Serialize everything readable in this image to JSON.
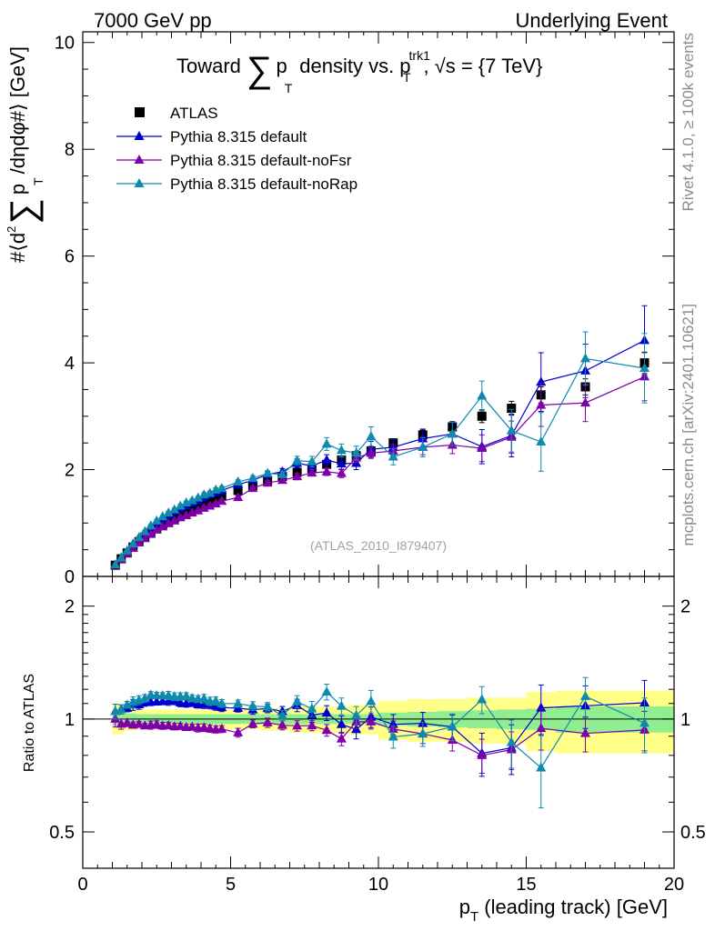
{
  "header": {
    "left": "7000 GeV pp",
    "right": "Underlying Event"
  },
  "side": {
    "rivet": "Rivet 4.1.0, ≥ 100k events",
    "mcplots": "mcplots.cern.ch [arXiv:2401.10621]"
  },
  "watermark": "(ATLAS_2010_I879407)",
  "colors": {
    "data": "#000000",
    "default": "#0000cc",
    "noFsr": "#7f00a8",
    "noRap": "#0f8aad",
    "band_stat": "#90ee90",
    "band_syst": "#ffff88"
  },
  "chart_data": {
    "type": "scatter",
    "title": {
      "prefix": "Toward",
      "sum": "∑",
      "pt": "p",
      "pt_sub": "T",
      "middle": "density vs. p",
      "trk_sup": "trk1",
      "trk_sub": "T",
      "suffix": ", √s = {7 TeV}"
    },
    "ylabel": {
      "prefix": "#⟨d",
      "sup": "2",
      "sum": "∑",
      "p": "p",
      "sub": "T",
      "suffix": "/dηdφ#⟩ [GeV]"
    },
    "xlabel": {
      "p": "p",
      "sub": "T",
      "suffix": " (leading track) [GeV]"
    },
    "ratio_ylabel": "Ratio to ATLAS",
    "xlim": [
      0,
      20
    ],
    "ylim": [
      0,
      10.2
    ],
    "ratio_ylim": [
      0.4,
      2.4
    ],
    "x_ticks": [
      "0",
      "5",
      "10",
      "15",
      "20"
    ],
    "y_ticks": [
      "0",
      "2",
      "4",
      "6",
      "8",
      "10"
    ],
    "ratio_ticks": [
      "0.5",
      "1",
      "2"
    ],
    "legend": {
      "position": "top-left",
      "entries": [
        "ATLAS",
        "Pythia 8.315 default",
        "Pythia 8.315 default-noFsr",
        "Pythia 8.315 default-noRap"
      ]
    },
    "x": [
      1.1,
      1.3,
      1.5,
      1.7,
      1.9,
      2.1,
      2.3,
      2.5,
      2.7,
      2.9,
      3.1,
      3.3,
      3.5,
      3.7,
      3.9,
      4.1,
      4.3,
      4.5,
      4.7,
      5.25,
      5.75,
      6.25,
      6.75,
      7.25,
      7.75,
      8.25,
      8.75,
      9.25,
      9.75,
      10.5,
      11.5,
      12.5,
      13.5,
      14.5,
      15.5,
      17.0,
      19.0
    ],
    "series": [
      {
        "name": "ATLAS",
        "values": [
          0.21,
          0.33,
          0.44,
          0.55,
          0.65,
          0.74,
          0.82,
          0.9,
          0.97,
          1.03,
          1.09,
          1.15,
          1.2,
          1.25,
          1.3,
          1.35,
          1.4,
          1.45,
          1.5,
          1.61,
          1.7,
          1.79,
          1.87,
          1.95,
          2.02,
          2.1,
          2.18,
          2.26,
          2.35,
          2.5,
          2.65,
          2.8,
          3.0,
          3.15,
          3.4,
          3.55,
          4.0
        ],
        "errors": [
          0.01,
          0.01,
          0.01,
          0.01,
          0.01,
          0.01,
          0.01,
          0.01,
          0.01,
          0.01,
          0.02,
          0.02,
          0.02,
          0.02,
          0.02,
          0.02,
          0.02,
          0.02,
          0.02,
          0.03,
          0.03,
          0.04,
          0.04,
          0.04,
          0.05,
          0.05,
          0.06,
          0.06,
          0.07,
          0.08,
          0.09,
          0.1,
          0.12,
          0.13,
          0.15,
          0.15,
          0.2
        ]
      },
      {
        "name": "Pythia 8.315 default",
        "values": [
          0.22,
          0.35,
          0.47,
          0.6,
          0.71,
          0.82,
          0.91,
          1.0,
          1.08,
          1.15,
          1.22,
          1.27,
          1.32,
          1.38,
          1.42,
          1.48,
          1.53,
          1.57,
          1.61,
          1.72,
          1.8,
          1.91,
          1.96,
          2.12,
          2.07,
          2.18,
          2.11,
          2.12,
          2.38,
          2.42,
          2.58,
          2.67,
          2.43,
          2.64,
          3.64,
          3.85,
          4.42
        ],
        "errors": [
          0.01,
          0.01,
          0.01,
          0.02,
          0.02,
          0.02,
          0.02,
          0.02,
          0.02,
          0.03,
          0.03,
          0.03,
          0.03,
          0.03,
          0.03,
          0.04,
          0.04,
          0.04,
          0.04,
          0.04,
          0.05,
          0.05,
          0.06,
          0.08,
          0.09,
          0.1,
          0.11,
          0.12,
          0.15,
          0.15,
          0.18,
          0.2,
          0.32,
          0.4,
          0.55,
          0.5,
          0.65
        ]
      },
      {
        "name": "Pythia 8.315 default-noFsr",
        "values": [
          0.21,
          0.32,
          0.43,
          0.53,
          0.63,
          0.71,
          0.79,
          0.87,
          0.93,
          0.99,
          1.04,
          1.1,
          1.14,
          1.19,
          1.23,
          1.28,
          1.32,
          1.36,
          1.41,
          1.48,
          1.65,
          1.75,
          1.8,
          1.87,
          1.94,
          1.96,
          1.93,
          2.22,
          2.31,
          2.35,
          2.42,
          2.46,
          2.4,
          2.61,
          3.21,
          3.25,
          3.74
        ],
        "errors": [
          0.01,
          0.01,
          0.01,
          0.01,
          0.01,
          0.01,
          0.02,
          0.02,
          0.02,
          0.02,
          0.02,
          0.02,
          0.02,
          0.02,
          0.03,
          0.03,
          0.03,
          0.03,
          0.03,
          0.04,
          0.04,
          0.05,
          0.05,
          0.06,
          0.06,
          0.07,
          0.08,
          0.09,
          0.1,
          0.12,
          0.14,
          0.16,
          0.25,
          0.3,
          0.4,
          0.35,
          0.45
        ]
      },
      {
        "name": "Pythia 8.315 default-noRap",
        "values": [
          0.22,
          0.35,
          0.48,
          0.61,
          0.73,
          0.84,
          0.95,
          1.04,
          1.12,
          1.19,
          1.25,
          1.32,
          1.38,
          1.42,
          1.47,
          1.53,
          1.56,
          1.62,
          1.65,
          1.77,
          1.84,
          1.93,
          1.91,
          2.17,
          2.15,
          2.48,
          2.36,
          2.31,
          2.62,
          2.24,
          2.42,
          2.67,
          3.38,
          2.73,
          2.52,
          4.08,
          3.9
        ],
        "errors": [
          0.01,
          0.01,
          0.01,
          0.02,
          0.02,
          0.02,
          0.02,
          0.02,
          0.02,
          0.03,
          0.03,
          0.03,
          0.03,
          0.03,
          0.03,
          0.04,
          0.04,
          0.04,
          0.04,
          0.04,
          0.05,
          0.05,
          0.06,
          0.08,
          0.1,
          0.12,
          0.12,
          0.13,
          0.18,
          0.15,
          0.18,
          0.22,
          0.28,
          0.4,
          0.55,
          0.5,
          0.65
        ]
      }
    ],
    "ratio_bands": {
      "edges": [
        1,
        1.4,
        1.8,
        2.2,
        2.6,
        3.0,
        3.4,
        3.8,
        4.2,
        4.6,
        5.0,
        5.5,
        6.0,
        6.5,
        7.0,
        7.5,
        8.0,
        8.5,
        9.0,
        9.5,
        10.0,
        11.0,
        12.0,
        13.0,
        14.0,
        15.0,
        16.0,
        18.0,
        20.0
      ],
      "stat": [
        0.04,
        0.035,
        0.03,
        0.03,
        0.03,
        0.03,
        0.03,
        0.03,
        0.03,
        0.03,
        0.03,
        0.03,
        0.03,
        0.03,
        0.03,
        0.03,
        0.03,
        0.03,
        0.03,
        0.03,
        0.04,
        0.045,
        0.05,
        0.055,
        0.06,
        0.065,
        0.08,
        0.08
      ],
      "syst": [
        0.09,
        0.07,
        0.06,
        0.06,
        0.06,
        0.06,
        0.06,
        0.06,
        0.06,
        0.06,
        0.06,
        0.06,
        0.07,
        0.07,
        0.08,
        0.08,
        0.08,
        0.08,
        0.09,
        0.09,
        0.12,
        0.13,
        0.13,
        0.14,
        0.14,
        0.18,
        0.19,
        0.19
      ]
    }
  }
}
